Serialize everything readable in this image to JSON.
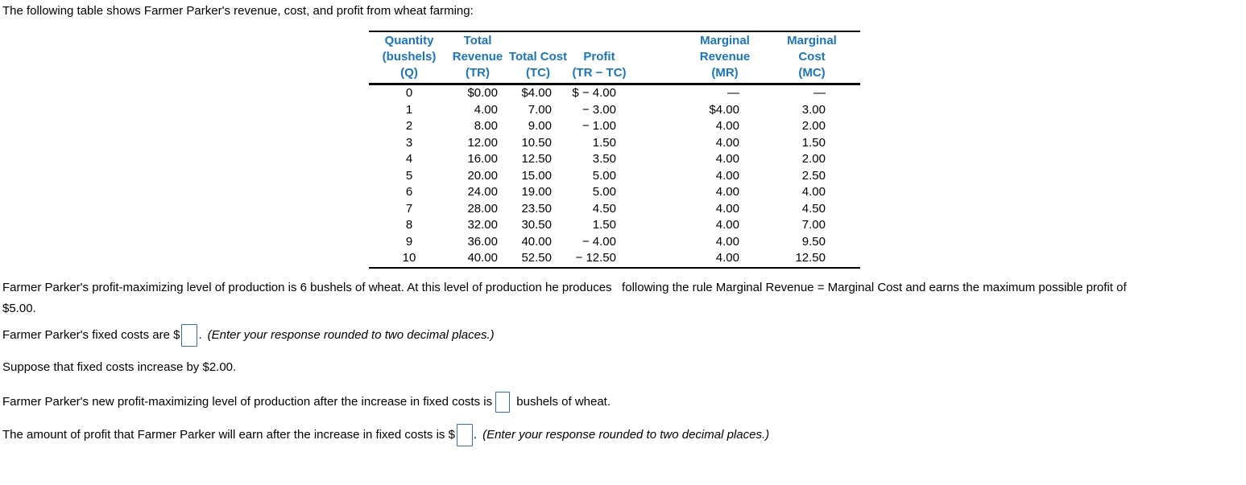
{
  "intro": "The following table shows Farmer Parker's revenue, cost, and profit from wheat farming:",
  "table": {
    "headers": [
      "Quantity\n(bushels)\n(Q)",
      "Total\nRevenue\n(TR)",
      "Total Cost\n(TC)",
      "Profit\n(TR − TC)",
      "Marginal\nRevenue\n(MR)",
      "Marginal\nCost\n(MC)"
    ],
    "rows": [
      [
        "0",
        "$0.00",
        "$4.00",
        "$ − 4.00",
        "—",
        "—"
      ],
      [
        "1",
        "4.00",
        "7.00",
        "− 3.00",
        "$4.00",
        "3.00"
      ],
      [
        "2",
        "8.00",
        "9.00",
        "− 1.00",
        "4.00",
        "2.00"
      ],
      [
        "3",
        "12.00",
        "10.50",
        "1.50",
        "4.00",
        "1.50"
      ],
      [
        "4",
        "16.00",
        "12.50",
        "3.50",
        "4.00",
        "2.00"
      ],
      [
        "5",
        "20.00",
        "15.00",
        "5.00",
        "4.00",
        "2.50"
      ],
      [
        "6",
        "24.00",
        "19.00",
        "5.00",
        "4.00",
        "4.00"
      ],
      [
        "7",
        "28.00",
        "23.50",
        "4.50",
        "4.00",
        "4.50"
      ],
      [
        "8",
        "32.00",
        "30.50",
        "1.50",
        "4.00",
        "7.00"
      ],
      [
        "9",
        "36.00",
        "40.00",
        "− 4.00",
        "4.00",
        "9.50"
      ],
      [
        "10",
        "40.00",
        "52.50",
        "− 12.50",
        "4.00",
        "12.50"
      ]
    ]
  },
  "statement": "Farmer Parker's profit-maximizing level of production is 6 bushels of wheat. At this level of production he produces   following the rule Marginal Revenue = Marginal Cost and earns the maximum possible profit of\n$5.00.",
  "questions": {
    "fixed_costs": {
      "text_before": "Farmer Parker's fixed costs are $",
      "input_value": "",
      "text_after": ".",
      "hint": "(Enter your response rounded to two decimal places.)"
    },
    "suppose": "Suppose that fixed costs increase by $2.00.",
    "new_level": {
      "text_before": "Farmer Parker's new profit-maximizing level of production after the increase in fixed costs is",
      "input_value": "",
      "text_after": " bushels of wheat."
    },
    "new_profit": {
      "text_before": "The amount of profit that Farmer Parker will earn after the increase in fixed costs is $",
      "input_value": "",
      "text_after": ".",
      "hint": "(Enter your response rounded to two decimal places.)"
    }
  },
  "colors": {
    "table_header_blue": "#1b75bc",
    "input_border_blue": "#3a66c4",
    "rule_black": "#000000"
  }
}
